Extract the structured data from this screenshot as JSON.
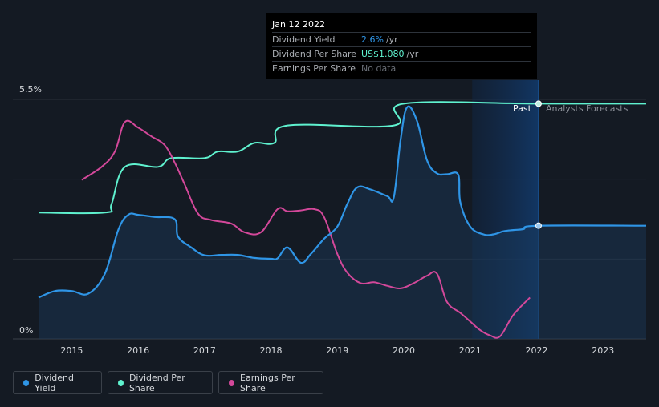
{
  "chart_data": {
    "type": "area",
    "x_ticks": [
      "2015",
      "2016",
      "2017",
      "2018",
      "2019",
      "2020",
      "2021",
      "2022",
      "2023"
    ],
    "y_ticks": [
      "5.5%",
      "0%"
    ],
    "ylim": [
      0,
      5.5
    ],
    "past_label": "Past",
    "forecast_label": "Analysts Forecasts",
    "series": [
      {
        "name": "Dividend Yield",
        "color": "#2f95e6",
        "points": [
          [
            2014.5,
            0.95
          ],
          [
            2014.75,
            1.1
          ],
          [
            2015.0,
            1.1
          ],
          [
            2015.25,
            1.04
          ],
          [
            2015.5,
            1.5
          ],
          [
            2015.7,
            2.5
          ],
          [
            2015.85,
            2.85
          ],
          [
            2016.0,
            2.85
          ],
          [
            2016.25,
            2.8
          ],
          [
            2016.55,
            2.75
          ],
          [
            2016.6,
            2.35
          ],
          [
            2016.8,
            2.1
          ],
          [
            2017.0,
            1.92
          ],
          [
            2017.25,
            1.93
          ],
          [
            2017.5,
            1.93
          ],
          [
            2017.75,
            1.86
          ],
          [
            2018.0,
            1.84
          ],
          [
            2018.1,
            1.85
          ],
          [
            2018.25,
            2.1
          ],
          [
            2018.45,
            1.75
          ],
          [
            2018.6,
            1.95
          ],
          [
            2018.8,
            2.3
          ],
          [
            2019.0,
            2.58
          ],
          [
            2019.15,
            3.1
          ],
          [
            2019.3,
            3.48
          ],
          [
            2019.5,
            3.43
          ],
          [
            2019.75,
            3.28
          ],
          [
            2019.85,
            3.25
          ],
          [
            2019.95,
            4.55
          ],
          [
            2020.05,
            5.32
          ],
          [
            2020.2,
            5.0
          ],
          [
            2020.35,
            4.1
          ],
          [
            2020.5,
            3.8
          ],
          [
            2020.65,
            3.78
          ],
          [
            2020.82,
            3.77
          ],
          [
            2020.85,
            3.15
          ],
          [
            2021.0,
            2.58
          ],
          [
            2021.2,
            2.4
          ],
          [
            2021.35,
            2.4
          ],
          [
            2021.5,
            2.47
          ],
          [
            2021.65,
            2.5
          ],
          [
            2021.8,
            2.52
          ],
          [
            2022.03,
            2.6
          ],
          [
            2023.65,
            2.6
          ]
        ]
      },
      {
        "name": "Dividend Per Share",
        "color": "#5ff2cf",
        "points": [
          [
            2014.5,
            2.9
          ],
          [
            2015.5,
            2.9
          ],
          [
            2015.6,
            3.1
          ],
          [
            2015.8,
            3.95
          ],
          [
            2016.3,
            3.95
          ],
          [
            2016.5,
            4.15
          ],
          [
            2017.0,
            4.15
          ],
          [
            2017.2,
            4.3
          ],
          [
            2017.5,
            4.3
          ],
          [
            2017.75,
            4.5
          ],
          [
            2018.05,
            4.5
          ],
          [
            2018.25,
            4.9
          ],
          [
            2019.85,
            4.9
          ],
          [
            2020.0,
            5.4
          ],
          [
            2022.03,
            5.4
          ],
          [
            2023.65,
            5.4
          ]
        ]
      },
      {
        "name": "Earnings Per Share",
        "color": "#d3489a",
        "points": [
          [
            2015.15,
            3.65
          ],
          [
            2015.45,
            3.95
          ],
          [
            2015.65,
            4.3
          ],
          [
            2015.8,
            4.98
          ],
          [
            2016.0,
            4.85
          ],
          [
            2016.2,
            4.65
          ],
          [
            2016.4,
            4.45
          ],
          [
            2016.55,
            4.05
          ],
          [
            2016.7,
            3.55
          ],
          [
            2016.9,
            2.88
          ],
          [
            2017.1,
            2.73
          ],
          [
            2017.4,
            2.65
          ],
          [
            2017.6,
            2.45
          ],
          [
            2017.85,
            2.45
          ],
          [
            2018.1,
            2.98
          ],
          [
            2018.25,
            2.93
          ],
          [
            2018.45,
            2.95
          ],
          [
            2018.65,
            2.98
          ],
          [
            2018.8,
            2.8
          ],
          [
            2019.0,
            1.95
          ],
          [
            2019.15,
            1.52
          ],
          [
            2019.35,
            1.28
          ],
          [
            2019.55,
            1.3
          ],
          [
            2019.75,
            1.22
          ],
          [
            2019.95,
            1.16
          ],
          [
            2020.15,
            1.28
          ],
          [
            2020.35,
            1.45
          ],
          [
            2020.5,
            1.5
          ],
          [
            2020.65,
            0.85
          ],
          [
            2020.85,
            0.6
          ],
          [
            2021.0,
            0.4
          ],
          [
            2021.15,
            0.2
          ],
          [
            2021.3,
            0.08
          ],
          [
            2021.45,
            0.06
          ],
          [
            2021.65,
            0.55
          ],
          [
            2021.9,
            0.95
          ]
        ]
      }
    ],
    "tooltip": {
      "date": "Jan 12 2022",
      "rows": [
        {
          "label": "Dividend Yield",
          "value": "2.6%",
          "unit": "/yr"
        },
        {
          "label": "Dividend Per Share",
          "value": "US$1.080",
          "unit": "/yr"
        },
        {
          "label": "Earnings Per Share",
          "value": "No data",
          "unit": ""
        }
      ]
    },
    "legend": [
      "Dividend Yield",
      "Dividend Per Share",
      "Earnings Per Share"
    ]
  }
}
